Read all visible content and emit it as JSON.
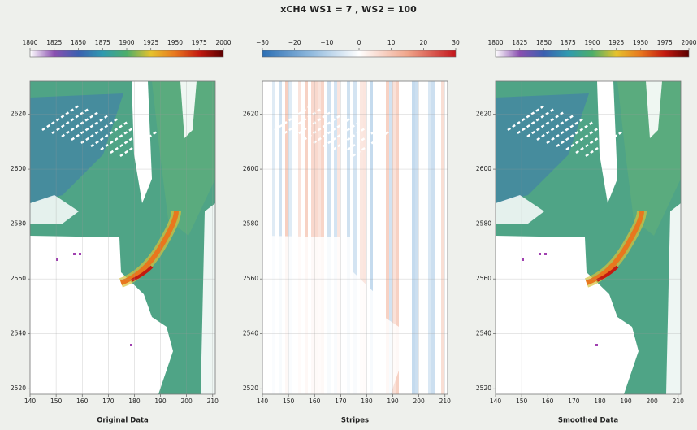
{
  "title": "xCH4 WS1 = 7 , WS2 = 100",
  "chart_data": [
    {
      "type": "heatmap",
      "xlabel": "Original Data",
      "style": "plume",
      "colorbar": {
        "colors": [
          "#ffffff",
          "#8a4fb0",
          "#3b5fb0",
          "#2f9ab0",
          "#4cae6a",
          "#e6c22c",
          "#e8771e",
          "#c41a10",
          "#5a0000"
        ],
        "lim": [
          1800,
          2000
        ],
        "ticks": [
          1800,
          1825,
          1850,
          1875,
          1900,
          1925,
          1950,
          1975,
          2000
        ]
      },
      "xlim": [
        140,
        211
      ],
      "xticks": [
        140,
        150,
        160,
        170,
        180,
        190,
        200,
        210
      ],
      "ylim": [
        2518,
        2632
      ],
      "yticks": [
        2520,
        2540,
        2560,
        2580,
        2600,
        2620
      ],
      "grid": true
    },
    {
      "type": "heatmap",
      "xlabel": "Stripes",
      "style": "stripes",
      "colorbar": {
        "colors": [
          "#2c6fb4",
          "#8fb9dd",
          "#ffffff",
          "#f0a58a",
          "#c4161c"
        ],
        "lim": [
          -30,
          30
        ],
        "ticks": [
          {
            "value": -30,
            "label": "−30"
          },
          {
            "value": -20,
            "label": "−20"
          },
          {
            "value": -10,
            "label": "−10"
          },
          0,
          10,
          20,
          30
        ]
      },
      "xlim": [
        140,
        211
      ],
      "xticks": [
        140,
        150,
        160,
        170,
        180,
        190,
        200,
        210
      ],
      "ylim": [
        2518,
        2632
      ],
      "yticks": [
        2520,
        2540,
        2560,
        2580,
        2600,
        2620
      ],
      "grid": true
    },
    {
      "type": "heatmap",
      "xlabel": "Smoothed Data",
      "style": "plume",
      "colorbar": {
        "colors": [
          "#ffffff",
          "#8a4fb0",
          "#3b5fb0",
          "#2f9ab0",
          "#4cae6a",
          "#e6c22c",
          "#e8771e",
          "#c41a10",
          "#5a0000"
        ],
        "lim": [
          1800,
          2000
        ],
        "ticks": [
          1800,
          1825,
          1850,
          1875,
          1900,
          1925,
          1950,
          1975,
          2000
        ]
      },
      "xlim": [
        140,
        211
      ],
      "xticks": [
        140,
        150,
        160,
        170,
        180,
        190,
        200,
        210
      ],
      "ylim": [
        2518,
        2632
      ],
      "yticks": [
        2520,
        2540,
        2560,
        2580,
        2600,
        2620
      ],
      "grid": true
    }
  ]
}
